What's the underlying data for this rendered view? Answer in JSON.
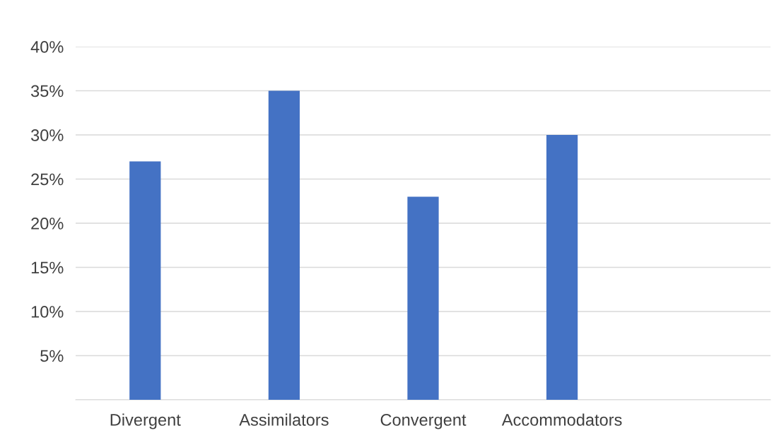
{
  "chart_data": {
    "type": "bar",
    "categories": [
      "Divergent",
      "Assimilators",
      "Convergent",
      "Accommodators",
      null
    ],
    "values": [
      27,
      35,
      23,
      30,
      null
    ],
    "color": "#4472c4",
    "ylim": [
      0,
      40
    ],
    "yticks": [
      {
        "value": 0,
        "label": null
      },
      {
        "value": 5,
        "label": "5%"
      },
      {
        "value": 10,
        "label": "10%"
      },
      {
        "value": 15,
        "label": "15%"
      },
      {
        "value": 20,
        "label": "20%"
      },
      {
        "value": 25,
        "label": "25%"
      },
      {
        "value": 30,
        "label": "30%"
      },
      {
        "value": 35,
        "label": "35%"
      },
      {
        "value": 40,
        "label": "40%"
      }
    ],
    "grid": "y",
    "legend": false
  }
}
